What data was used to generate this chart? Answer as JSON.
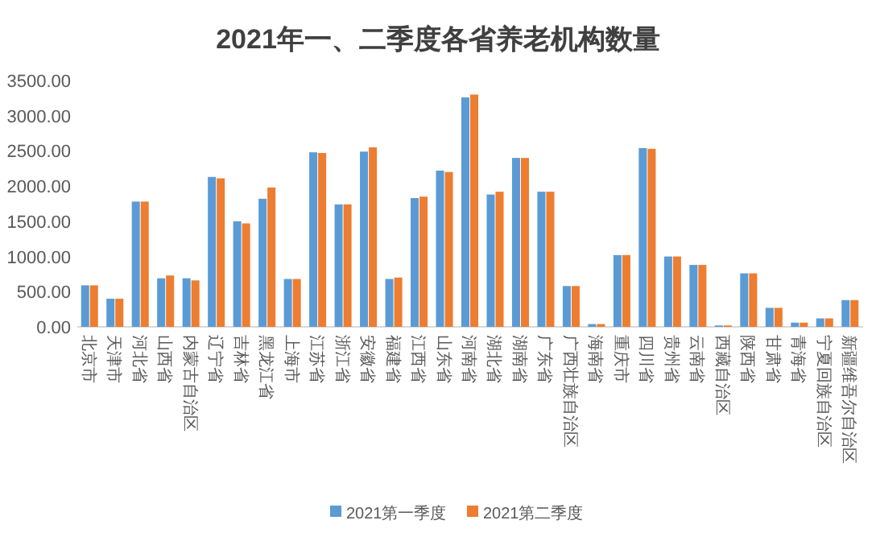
{
  "chart_data": {
    "type": "bar",
    "title": "2021年一、二季度各省养老机构数量",
    "categories": [
      "北京市",
      "天津市",
      "河北省",
      "山西省",
      "内蒙古自治区",
      "辽宁省",
      "吉林省",
      "黑龙江省",
      "上海市",
      "江苏省",
      "浙江省",
      "安徽省",
      "福建省",
      "江西省",
      "山东省",
      "河南省",
      "湖北省",
      "湖南省",
      "广东省",
      "广西壮族自治区",
      "海南省",
      "重庆市",
      "四川省",
      "贵州省",
      "云南省",
      "西藏自治区",
      "陕西省",
      "甘肃省",
      "青海省",
      "宁夏回族自治区",
      "新疆维吾尔自治区"
    ],
    "series": [
      {
        "name": "2021第一季度",
        "color": "#5b9bd5",
        "values": [
          590,
          400,
          1780,
          690,
          690,
          2130,
          1500,
          1820,
          680,
          2480,
          1740,
          2490,
          680,
          1830,
          2220,
          3260,
          1880,
          2400,
          1920,
          580,
          40,
          1020,
          2540,
          1000,
          880,
          20,
          760,
          270,
          60,
          120,
          380
        ]
      },
      {
        "name": "2021第二季度",
        "color": "#ed7d31",
        "values": [
          590,
          400,
          1780,
          730,
          660,
          2110,
          1470,
          1980,
          680,
          2470,
          1740,
          2550,
          700,
          1850,
          2200,
          3300,
          1920,
          2400,
          1920,
          580,
          40,
          1020,
          2530,
          1000,
          880,
          20,
          760,
          270,
          60,
          120,
          380
        ]
      }
    ],
    "ylim": [
      0,
      3500
    ],
    "yticks": [
      {
        "value": 0,
        "label": "0.00"
      },
      {
        "value": 500,
        "label": "500.00"
      },
      {
        "value": 1000,
        "label": "1000.00"
      },
      {
        "value": 1500,
        "label": "1500.00"
      },
      {
        "value": 2000,
        "label": "2000.00"
      },
      {
        "value": 2500,
        "label": "2500.00"
      },
      {
        "value": 3000,
        "label": "3000.00"
      },
      {
        "value": 3500,
        "label": "3500.00"
      }
    ],
    "grid": false,
    "legend": "bottom"
  }
}
